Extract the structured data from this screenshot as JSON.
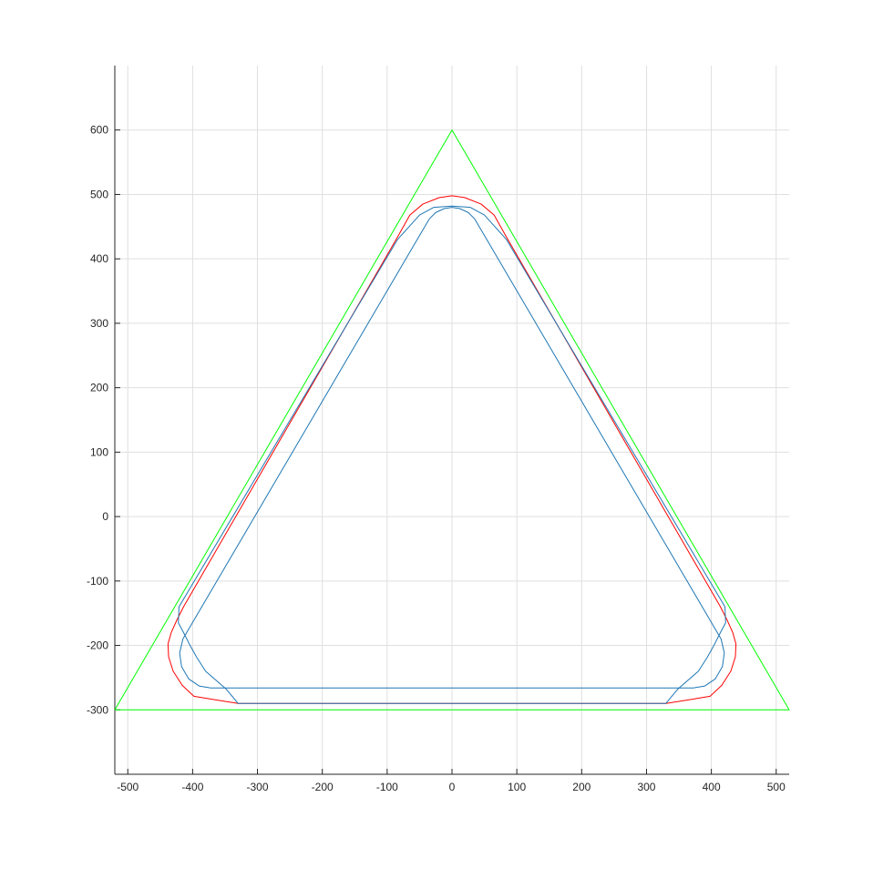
{
  "chart_data": {
    "type": "line",
    "title": "",
    "xlabel": "",
    "ylabel": "",
    "xlim": [
      -520,
      520
    ],
    "ylim": [
      -400,
      700
    ],
    "xticks": [
      -500,
      -400,
      -300,
      -200,
      -100,
      0,
      100,
      200,
      300,
      400,
      500
    ],
    "yticks": [
      -300,
      -200,
      -100,
      0,
      100,
      200,
      300,
      400,
      500,
      600
    ],
    "grid": true,
    "legend": "none",
    "series": [
      {
        "color": "#00ff00",
        "points": [
          [
            -520,
            -300
          ],
          [
            0,
            600
          ],
          [
            520,
            -300
          ],
          [
            -520,
            -300
          ]
        ]
      },
      {
        "color": "#ff0000",
        "points": [
          [
            -85,
            432
          ],
          [
            -65,
            468
          ],
          [
            -45,
            485
          ],
          [
            -20,
            495
          ],
          [
            0,
            498
          ],
          [
            20,
            495
          ],
          [
            45,
            485
          ],
          [
            65,
            468
          ],
          [
            85,
            432
          ],
          [
            414,
            -140
          ],
          [
            424,
            -160
          ],
          [
            433,
            -180
          ],
          [
            438,
            -198
          ],
          [
            437,
            -218
          ],
          [
            430,
            -240
          ],
          [
            416,
            -262
          ],
          [
            398,
            -279
          ],
          [
            380,
            -282
          ],
          [
            330,
            -290
          ],
          [
            -330,
            -290
          ],
          [
            -380,
            -282
          ],
          [
            -398,
            -279
          ],
          [
            -416,
            -262
          ],
          [
            -430,
            -240
          ],
          [
            -437,
            -218
          ],
          [
            -438,
            -198
          ],
          [
            -433,
            -180
          ],
          [
            -424,
            -160
          ],
          [
            -414,
            -140
          ],
          [
            -85,
            432
          ]
        ]
      },
      {
        "color": "#1f77b4",
        "points": [
          [
            -84,
            430
          ],
          [
            -50,
            468
          ],
          [
            -28,
            480
          ],
          [
            0,
            482
          ],
          [
            28,
            480
          ],
          [
            50,
            468
          ],
          [
            84,
            430
          ],
          [
            421,
            -140
          ],
          [
            422,
            -165
          ],
          [
            414,
            -180
          ],
          [
            404,
            -200
          ],
          [
            394,
            -218
          ],
          [
            380,
            -240
          ],
          [
            348,
            -268
          ],
          [
            330,
            -290
          ],
          [
            -330,
            -290
          ],
          [
            -348,
            -268
          ],
          [
            -380,
            -240
          ],
          [
            -394,
            -218
          ],
          [
            -404,
            -200
          ],
          [
            -414,
            -180
          ],
          [
            -422,
            -165
          ],
          [
            -421,
            -140
          ],
          [
            -84,
            430
          ]
        ]
      },
      {
        "color": "#1f77b4",
        "points": [
          [
            -35,
            462
          ],
          [
            -25,
            472
          ],
          [
            -12,
            478
          ],
          [
            0,
            480
          ],
          [
            12,
            478
          ],
          [
            25,
            472
          ],
          [
            35,
            462
          ],
          [
            415,
            -190
          ],
          [
            420,
            -212
          ],
          [
            417,
            -233
          ],
          [
            406,
            -252
          ],
          [
            390,
            -263
          ],
          [
            372,
            -266
          ],
          [
            -372,
            -266
          ],
          [
            -390,
            -263
          ],
          [
            -406,
            -252
          ],
          [
            -417,
            -233
          ],
          [
            -420,
            -212
          ],
          [
            -415,
            -190
          ],
          [
            -35,
            462
          ]
        ]
      }
    ]
  }
}
